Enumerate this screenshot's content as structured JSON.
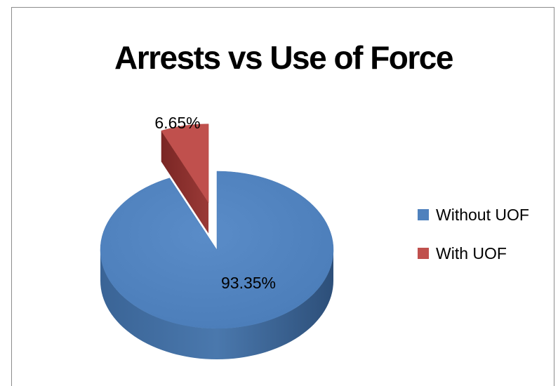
{
  "chart_data": {
    "type": "pie",
    "title": "Arrests vs Use of Force",
    "slices": [
      {
        "label": "Without UOF",
        "value": 93.35,
        "display": "93.35%",
        "color": "#4f81bd"
      },
      {
        "label": "With UOF",
        "value": 6.65,
        "display": "6.65%",
        "color": "#c0504d",
        "exploded": true
      }
    ],
    "legend_position": "right",
    "style": "3d"
  }
}
